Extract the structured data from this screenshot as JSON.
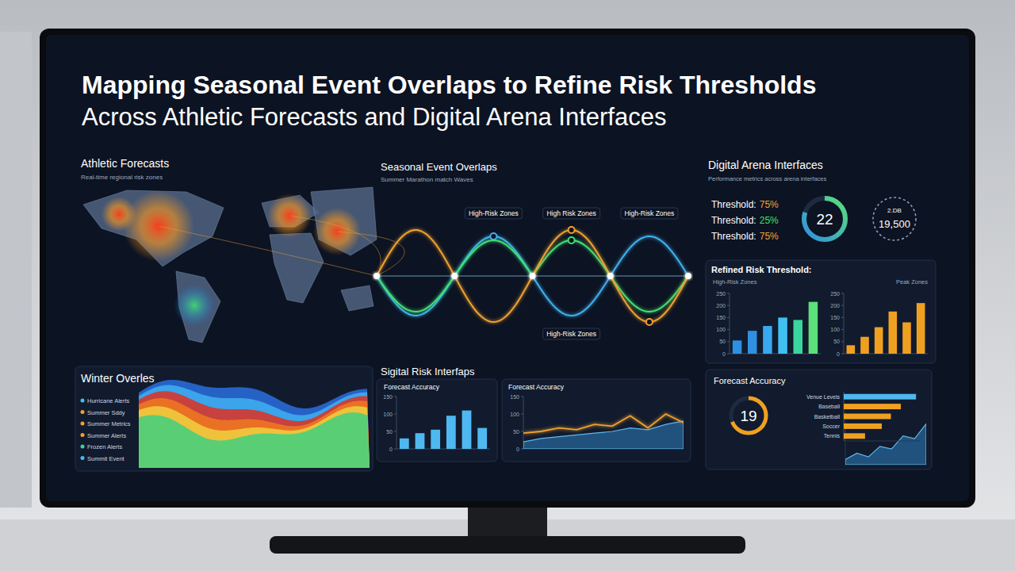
{
  "header": {
    "title": "Mapping Seasonal Event Overlaps to Refine Risk Thresholds",
    "subtitle": "Across Athletic Forecasts and Digital Arena Interfaces"
  },
  "map_panel": {
    "title": "Athletic Forecasts",
    "subtitle": "Real-time regional risk zones"
  },
  "overlap_panel": {
    "title": "Seasonal Event Overlaps",
    "subtitle": "Summer Marathon match Waves",
    "zone_labels": [
      "High-Risk Zones",
      "High Risk Zones",
      "High-Risk Zones",
      "High-Risk Zones"
    ]
  },
  "arena_panel": {
    "title": "Digital Arena Interfaces",
    "subtitle": "Performance metrics across arena interfaces",
    "thresholds": [
      {
        "label": "Threshold:",
        "value": "75%",
        "color": "#f5a030"
      },
      {
        "label": "Threshold:",
        "value": "25%",
        "color": "#3fe06a"
      },
      {
        "label": "Threshold:",
        "value": "75%",
        "color": "#f5a030"
      }
    ],
    "gauges": [
      {
        "value": 22
      },
      {
        "label": "2.DB",
        "value": "19,500"
      }
    ]
  },
  "winter_panel": {
    "title": "Winter Overles",
    "items": [
      "Hurricane Alerts",
      "Summer Sddy",
      "Summer Metrics",
      "Summer Alerts",
      "Frozen Alerts",
      "Summit Event"
    ]
  },
  "risk_panel": {
    "title": "Sigital Risk Interfaps"
  },
  "accuracy_panel": {
    "title": "Forecast Accuracy",
    "score": 19
  },
  "chart_data": [
    {
      "type": "bar",
      "title": "Refined Risk Threshold:",
      "subtitle": "High-Risk Zones",
      "categories": [
        null,
        null,
        null,
        null,
        null,
        null
      ],
      "values": [
        55,
        95,
        115,
        150,
        140,
        215
      ],
      "colors": [
        "#2f8fe0",
        "#2f8fe0",
        "#38a8f0",
        "#40c0f0",
        "#3ad6a0",
        "#5be07a"
      ],
      "ylim": [
        0,
        250
      ],
      "yticks": [
        0,
        50,
        100,
        150,
        200,
        250
      ],
      "tick_labels": "y",
      "grid": false
    },
    {
      "type": "bar",
      "subtitle": "Peak Zones",
      "categories": [
        null,
        null,
        null,
        null,
        null,
        null
      ],
      "values": [
        35,
        70,
        110,
        175,
        130,
        210
      ],
      "color": "#f0a020",
      "ylim": [
        0,
        250
      ],
      "yticks": [
        0,
        50,
        100,
        150,
        200,
        250
      ],
      "tick_labels": "y",
      "grid": false
    },
    {
      "type": "bar",
      "title": "Forecast Accuracy",
      "categories": [
        null,
        null,
        null,
        null,
        null,
        null
      ],
      "values": [
        30,
        45,
        55,
        95,
        110,
        60
      ],
      "color": "#4fb8f0",
      "ylim": [
        0,
        150
      ],
      "yticks": [
        0,
        50,
        100,
        150
      ],
      "tick_labels": "y",
      "grid": false
    },
    {
      "type": "line",
      "title": "Forecast Accuracy",
      "categories": [
        null,
        null,
        null,
        null,
        null,
        null,
        null,
        null,
        null,
        null
      ],
      "series": [
        {
          "type": "area",
          "color": "#2f7fc0",
          "values": [
            20,
            30,
            35,
            40,
            45,
            50,
            60,
            55,
            70,
            80
          ]
        },
        {
          "type": "line",
          "color": "#f0a030",
          "values": [
            45,
            50,
            60,
            55,
            70,
            65,
            95,
            60,
            100,
            75
          ]
        }
      ],
      "ylim": [
        0,
        150
      ],
      "yticks": [
        0,
        50,
        100,
        150
      ],
      "tick_labels": "y",
      "grid": false
    },
    {
      "type": "bar",
      "orientation": "horizontal",
      "categories": [
        "Venue Levels",
        "Baseball",
        "Basketball",
        "Soccer",
        "Tennis"
      ],
      "values": [
        95,
        75,
        62,
        50,
        28
      ],
      "colors": [
        "#4fb8f0",
        "#f0a020",
        "#f0a020",
        "#f0a020",
        "#f0a020"
      ],
      "xlim": [
        0,
        100
      ],
      "tick_labels": false
    },
    {
      "type": "area",
      "categories": [
        null,
        null,
        null,
        null,
        null,
        null,
        null,
        null
      ],
      "values": [
        10,
        22,
        15,
        35,
        30,
        55,
        50,
        78
      ],
      "color": "#2f7fc0",
      "ylim": [
        0,
        100
      ],
      "tick_labels": false
    }
  ]
}
